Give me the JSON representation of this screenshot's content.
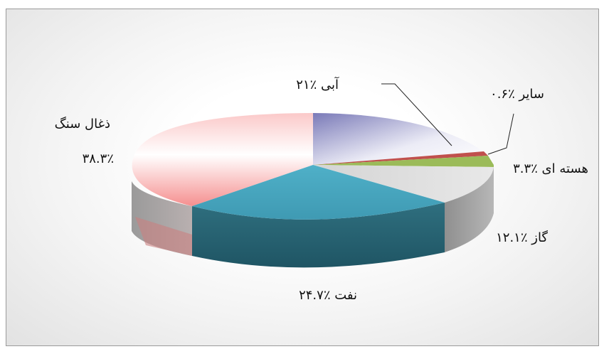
{
  "chart_data": {
    "type": "pie",
    "style": "3d",
    "title": "",
    "slices": [
      {
        "name": "ذغال سنگ",
        "value": 38.3,
        "label": "٣٨.٣٪",
        "color": "#f47c7c"
      },
      {
        "name": "آبی",
        "value": 21,
        "label": "٪٢١",
        "color": "#8e8ec4"
      },
      {
        "name": "سایر",
        "value": 0.6,
        "label": "٪٠.۶",
        "color": "#c0504d"
      },
      {
        "name": "هسته ای",
        "value": 3.3,
        "label": "٪٣.٣",
        "color": "#9bbb59"
      },
      {
        "name": "گاز",
        "value": 12.1,
        "label": "٪١٢.١",
        "color": "#bfbfbf"
      },
      {
        "name": "نفت",
        "value": 24.7,
        "label": "٪٢۴.٧",
        "color": "#4bacc6"
      }
    ],
    "legend": "none"
  },
  "labels": {
    "coal_name": "ذغال سنگ",
    "coal_value": "٣٨.٣٪",
    "hydro": "آبی ٪٢١",
    "other": "سایر ٪٠.۶",
    "nuclear": "هسته ای ٪٣.٣",
    "gas": "گاز ٪١٢.١",
    "oil": "نفت ٪٢۴.٧"
  }
}
